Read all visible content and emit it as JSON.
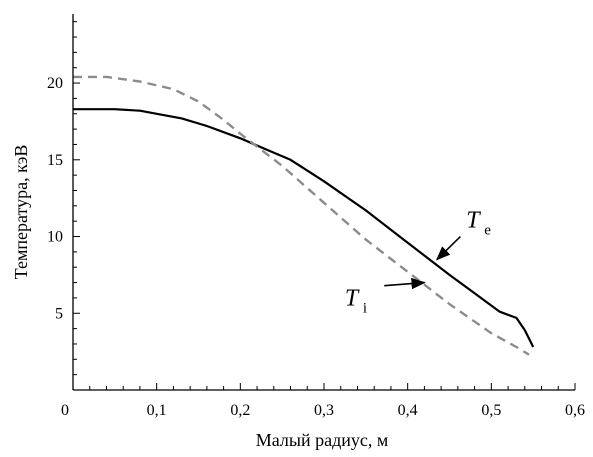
{
  "chart_data": {
    "type": "line",
    "title": "",
    "xlabel": "Малый радиус, м",
    "ylabel": "Температура, кэВ",
    "xlim": [
      0,
      0.6
    ],
    "ylim": [
      0,
      24.5
    ],
    "x_ticks": [
      {
        "value": 0,
        "label": "0"
      },
      {
        "value": 0.1,
        "label": "0,1"
      },
      {
        "value": 0.2,
        "label": "0,2"
      },
      {
        "value": 0.3,
        "label": "0,3"
      },
      {
        "value": 0.4,
        "label": "0,4"
      },
      {
        "value": 0.5,
        "label": "0,5"
      },
      {
        "value": 0.6,
        "label": "0,6"
      }
    ],
    "y_ticks": [
      {
        "value": 5,
        "label": "5"
      },
      {
        "value": 10,
        "label": "10"
      },
      {
        "value": 15,
        "label": "15"
      },
      {
        "value": 20,
        "label": "20"
      }
    ],
    "grid": false,
    "legend": "none",
    "series": [
      {
        "label_main": "T",
        "label_sub": "e",
        "color": "#000000",
        "dash": "solid",
        "label_pos": {
          "x": 0.47,
          "y": 10.6
        },
        "arrow_from": {
          "x": 0.463,
          "y": 10.0
        },
        "arrow_to": {
          "x": 0.435,
          "y": 8.5
        },
        "points": [
          {
            "x": 0.0,
            "y": 18.3
          },
          {
            "x": 0.05,
            "y": 18.3
          },
          {
            "x": 0.08,
            "y": 18.2
          },
          {
            "x": 0.1,
            "y": 18.0
          },
          {
            "x": 0.13,
            "y": 17.7
          },
          {
            "x": 0.16,
            "y": 17.2
          },
          {
            "x": 0.2,
            "y": 16.4
          },
          {
            "x": 0.23,
            "y": 15.7
          },
          {
            "x": 0.26,
            "y": 15.0
          },
          {
            "x": 0.3,
            "y": 13.6
          },
          {
            "x": 0.35,
            "y": 11.7
          },
          {
            "x": 0.4,
            "y": 9.6
          },
          {
            "x": 0.45,
            "y": 7.5
          },
          {
            "x": 0.48,
            "y": 6.3
          },
          {
            "x": 0.51,
            "y": 5.1
          },
          {
            "x": 0.53,
            "y": 4.7
          },
          {
            "x": 0.54,
            "y": 3.9
          },
          {
            "x": 0.55,
            "y": 2.8
          }
        ]
      },
      {
        "label_main": "T",
        "label_sub": "i",
        "color": "#8c8c8c",
        "dash": "dashed",
        "label_pos": {
          "x": 0.325,
          "y": 5.5
        },
        "arrow_from": {
          "x": 0.372,
          "y": 6.8
        },
        "arrow_to": {
          "x": 0.42,
          "y": 7.0
        },
        "points": [
          {
            "x": 0.0,
            "y": 20.4
          },
          {
            "x": 0.04,
            "y": 20.4
          },
          {
            "x": 0.08,
            "y": 20.1
          },
          {
            "x": 0.12,
            "y": 19.6
          },
          {
            "x": 0.15,
            "y": 18.8
          },
          {
            "x": 0.18,
            "y": 17.6
          },
          {
            "x": 0.2,
            "y": 16.7
          },
          {
            "x": 0.25,
            "y": 14.6
          },
          {
            "x": 0.3,
            "y": 12.2
          },
          {
            "x": 0.35,
            "y": 9.8
          },
          {
            "x": 0.4,
            "y": 7.7
          },
          {
            "x": 0.45,
            "y": 5.6
          },
          {
            "x": 0.5,
            "y": 3.7
          },
          {
            "x": 0.53,
            "y": 2.8
          },
          {
            "x": 0.545,
            "y": 2.3
          }
        ]
      }
    ]
  }
}
